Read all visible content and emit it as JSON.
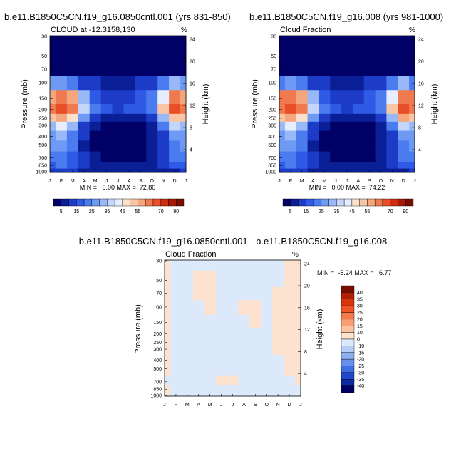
{
  "panels": [
    {
      "title": "b.e11.B1850C5CN.f19_g16.0850cntl.001 (yrs 831-850)",
      "subtitle": "CLOUD at -12.3158,130",
      "units": "%",
      "left_axis_label": "Pressure (mb)",
      "right_axis_label": "Height (km)",
      "pressure_ticks": [
        "30",
        "50",
        "70",
        "100",
        "150",
        "200",
        "250",
        "300",
        "400",
        "500",
        "700",
        "850",
        "1000"
      ],
      "height_ticks": [
        "4",
        "8",
        "12",
        "16",
        "20",
        "24"
      ],
      "months": [
        "J",
        "F",
        "M",
        "A",
        "M",
        "J",
        "J",
        "A",
        "S",
        "O",
        "N",
        "D",
        "J"
      ],
      "stats": "MIN =   0.00 MAX =  72.80"
    },
    {
      "title": "b.e11.B1850C5CN.f19_g16.008 (yrs 981-1000)",
      "subtitle": "Cloud Fraction",
      "units": "%",
      "left_axis_label": "Pressure (mb)",
      "right_axis_label": "Height (km)",
      "pressure_ticks": [
        "30",
        "50",
        "70",
        "100",
        "150",
        "200",
        "250",
        "300",
        "400",
        "500",
        "700",
        "850",
        "1000"
      ],
      "height_ticks": [
        "4",
        "8",
        "12",
        "16",
        "20",
        "24"
      ],
      "months": [
        "J",
        "F",
        "M",
        "A",
        "M",
        "J",
        "J",
        "A",
        "S",
        "O",
        "N",
        "D",
        "J"
      ],
      "stats": "MIN =   0.00 MAX =  74.22"
    },
    {
      "title": "b.e11.B1850C5CN.f19_g16.0850cntl.001 - b.e11.B1850C5CN.f19_g16.008",
      "subtitle": "Cloud Fraction",
      "units": "%",
      "left_axis_label": "Pressure (mb)",
      "right_axis_label": "Height (km)",
      "pressure_ticks": [
        "30",
        "50",
        "70",
        "100",
        "150",
        "200",
        "250",
        "300",
        "400",
        "500",
        "700",
        "850",
        "1000"
      ],
      "height_ticks": [
        "4",
        "8",
        "12",
        "16",
        "20",
        "24"
      ],
      "months": [
        "J",
        "F",
        "M",
        "A",
        "M",
        "J",
        "J",
        "A",
        "S",
        "O",
        "N",
        "D",
        "J"
      ],
      "stats": "MIN =  -5.24 MAX =   6.77"
    }
  ],
  "colorbars": {
    "horizontal": {
      "labels": [
        "5",
        "15",
        "25",
        "35",
        "45",
        "55",
        "70",
        "90"
      ],
      "colors": [
        "#000066",
        "#0a1e96",
        "#1c3cc8",
        "#2e5ae6",
        "#4a7cf0",
        "#6e9af4",
        "#98b8f8",
        "#c4d6fb",
        "#e6eefd",
        "#fbe1cc",
        "#f8c6a4",
        "#f4a67c",
        "#f07a50",
        "#e84e28",
        "#d02c10",
        "#a81806",
        "#7a0c02"
      ]
    },
    "vertical": {
      "labels": [
        "40",
        "35",
        "30",
        "25",
        "20",
        "15",
        "10",
        "0",
        "-10",
        "-15",
        "-20",
        "-25",
        "-30",
        "-35",
        "-40"
      ],
      "colors": [
        "#7a0c02",
        "#b01e08",
        "#d8340e",
        "#ee5426",
        "#f47a4a",
        "#f8a074",
        "#fac3a0",
        "#fde3cf",
        "#dce9fb",
        "#b6cdf7",
        "#8eb0f2",
        "#6690ec",
        "#3e6ee4",
        "#2048cc",
        "#0a2aa0",
        "#000066"
      ]
    }
  },
  "chart_data": [
    {
      "type": "heatmap",
      "title": "b.e11.B1850C5CN.f19_g16.0850cntl.001 (yrs 831-850)",
      "variable": "CLOUD at -12.3158,130",
      "units": "%",
      "x": [
        "J",
        "F",
        "M",
        "A",
        "M",
        "J",
        "J",
        "A",
        "S",
        "O",
        "N",
        "D",
        "J"
      ],
      "y_pressure_mb": [
        30,
        50,
        70,
        100,
        150,
        200,
        250,
        300,
        400,
        500,
        700,
        850,
        1000
      ],
      "values": [
        [
          0,
          0,
          0,
          0,
          0,
          0,
          0,
          0,
          0,
          0,
          0,
          0,
          0
        ],
        [
          0,
          0,
          0,
          0,
          0,
          0,
          0,
          0,
          0,
          0,
          0,
          0,
          0
        ],
        [
          3,
          3,
          3,
          2,
          1,
          1,
          1,
          1,
          1,
          2,
          2,
          3,
          3
        ],
        [
          25,
          28,
          22,
          14,
          10,
          9,
          9,
          9,
          10,
          14,
          24,
          32,
          25
        ],
        [
          58,
          66,
          58,
          34,
          18,
          14,
          13,
          14,
          16,
          22,
          44,
          66,
          58
        ],
        [
          66,
          72,
          65,
          38,
          20,
          15,
          14,
          15,
          17,
          24,
          50,
          72,
          66
        ],
        [
          50,
          56,
          46,
          26,
          13,
          8,
          7,
          8,
          9,
          14,
          34,
          54,
          50
        ],
        [
          34,
          40,
          30,
          14,
          6,
          3,
          2,
          3,
          4,
          8,
          20,
          36,
          34
        ],
        [
          28,
          30,
          22,
          10,
          4,
          1,
          1,
          1,
          2,
          6,
          14,
          26,
          28
        ],
        [
          25,
          26,
          20,
          9,
          3,
          1,
          1,
          1,
          2,
          5,
          12,
          22,
          25
        ],
        [
          22,
          24,
          18,
          11,
          5,
          2,
          2,
          2,
          3,
          6,
          12,
          20,
          22
        ],
        [
          18,
          20,
          16,
          12,
          9,
          7,
          6,
          6,
          7,
          9,
          12,
          16,
          18
        ],
        [
          10,
          12,
          10,
          8,
          6,
          5,
          5,
          5,
          5,
          6,
          8,
          9,
          10
        ]
      ],
      "min": 0.0,
      "max": 72.8
    },
    {
      "type": "heatmap",
      "title": "b.e11.B1850C5CN.f19_g16.008 (yrs 981-1000)",
      "variable": "Cloud Fraction",
      "units": "%",
      "x": [
        "J",
        "F",
        "M",
        "A",
        "M",
        "J",
        "J",
        "A",
        "S",
        "O",
        "N",
        "D",
        "J"
      ],
      "y_pressure_mb": [
        30,
        50,
        70,
        100,
        150,
        200,
        250,
        300,
        400,
        500,
        700,
        850,
        1000
      ],
      "values": [
        [
          0,
          0,
          0,
          0,
          0,
          0,
          0,
          0,
          0,
          0,
          0,
          0,
          0
        ],
        [
          0,
          0,
          0,
          0,
          0,
          0,
          0,
          0,
          0,
          0,
          0,
          0,
          0
        ],
        [
          3,
          3,
          3,
          2,
          1,
          1,
          1,
          1,
          1,
          2,
          2,
          3,
          3
        ],
        [
          24,
          28,
          22,
          14,
          10,
          9,
          9,
          9,
          10,
          14,
          24,
          32,
          24
        ],
        [
          60,
          68,
          58,
          34,
          18,
          14,
          13,
          14,
          16,
          22,
          44,
          68,
          60
        ],
        [
          67,
          74,
          65,
          38,
          20,
          15,
          14,
          15,
          17,
          24,
          50,
          74,
          67
        ],
        [
          50,
          56,
          46,
          26,
          13,
          8,
          7,
          8,
          9,
          14,
          34,
          55,
          50
        ],
        [
          34,
          40,
          30,
          14,
          6,
          3,
          2,
          3,
          4,
          8,
          20,
          36,
          34
        ],
        [
          28,
          30,
          22,
          10,
          4,
          1,
          1,
          1,
          2,
          6,
          14,
          26,
          28
        ],
        [
          25,
          26,
          20,
          9,
          3,
          1,
          1,
          1,
          2,
          5,
          12,
          22,
          25
        ],
        [
          22,
          24,
          18,
          11,
          5,
          2,
          2,
          2,
          3,
          6,
          12,
          20,
          22
        ],
        [
          18,
          20,
          16,
          12,
          9,
          7,
          6,
          6,
          7,
          9,
          12,
          16,
          18
        ],
        [
          10,
          12,
          10,
          8,
          6,
          5,
          5,
          5,
          5,
          6,
          8,
          9,
          10
        ]
      ],
      "min": 0.0,
      "max": 74.22
    },
    {
      "type": "heatmap",
      "title": "b.e11.B1850C5CN.f19_g16.0850cntl.001 - b.e11.B1850C5CN.f19_g16.008",
      "variable": "Cloud Fraction",
      "units": "%",
      "x": [
        "J",
        "F",
        "M",
        "A",
        "M",
        "J",
        "J",
        "A",
        "S",
        "O",
        "N",
        "D",
        "J"
      ],
      "y_pressure_mb": [
        30,
        50,
        70,
        100,
        150,
        200,
        250,
        300,
        400,
        500,
        700,
        850,
        1000
      ],
      "values": [
        [
          -1,
          2,
          2,
          2,
          2,
          2,
          2,
          2,
          2,
          2,
          2,
          -1,
          -1
        ],
        [
          -1,
          2,
          2,
          -1,
          -1,
          2,
          2,
          2,
          2,
          2,
          2,
          -1,
          -1
        ],
        [
          -1,
          2,
          2,
          -1,
          -1,
          2,
          2,
          2,
          2,
          2,
          -1,
          -1,
          -1
        ],
        [
          -1,
          2,
          2,
          2,
          -1,
          2,
          2,
          -1,
          -1,
          2,
          -1,
          -1,
          -1
        ],
        [
          -1,
          2,
          2,
          2,
          2,
          2,
          2,
          2,
          -1,
          2,
          -1,
          -1,
          -1
        ],
        [
          -1,
          2,
          2,
          2,
          2,
          2,
          2,
          2,
          2,
          2,
          -1,
          -1,
          -1
        ],
        [
          -1,
          2,
          2,
          2,
          2,
          2,
          2,
          2,
          2,
          2,
          -1,
          -1,
          -1
        ],
        [
          -1,
          2,
          2,
          2,
          2,
          2,
          2,
          2,
          2,
          2,
          -1,
          -1,
          -1
        ],
        [
          -1,
          2,
          2,
          2,
          2,
          2,
          2,
          2,
          2,
          2,
          2,
          -1,
          -1
        ],
        [
          -1,
          2,
          2,
          2,
          2,
          2,
          2,
          2,
          2,
          2,
          2,
          -1,
          -1
        ],
        [
          2,
          2,
          2,
          2,
          2,
          -1,
          -1,
          2,
          2,
          2,
          2,
          2,
          -1
        ],
        [
          -1,
          2,
          2,
          2,
          2,
          2,
          2,
          2,
          2,
          2,
          2,
          2,
          2
        ],
        [
          -1,
          2,
          2,
          2,
          2,
          2,
          2,
          2,
          2,
          2,
          2,
          2,
          2
        ]
      ],
      "min": -5.24,
      "max": 6.77
    }
  ]
}
